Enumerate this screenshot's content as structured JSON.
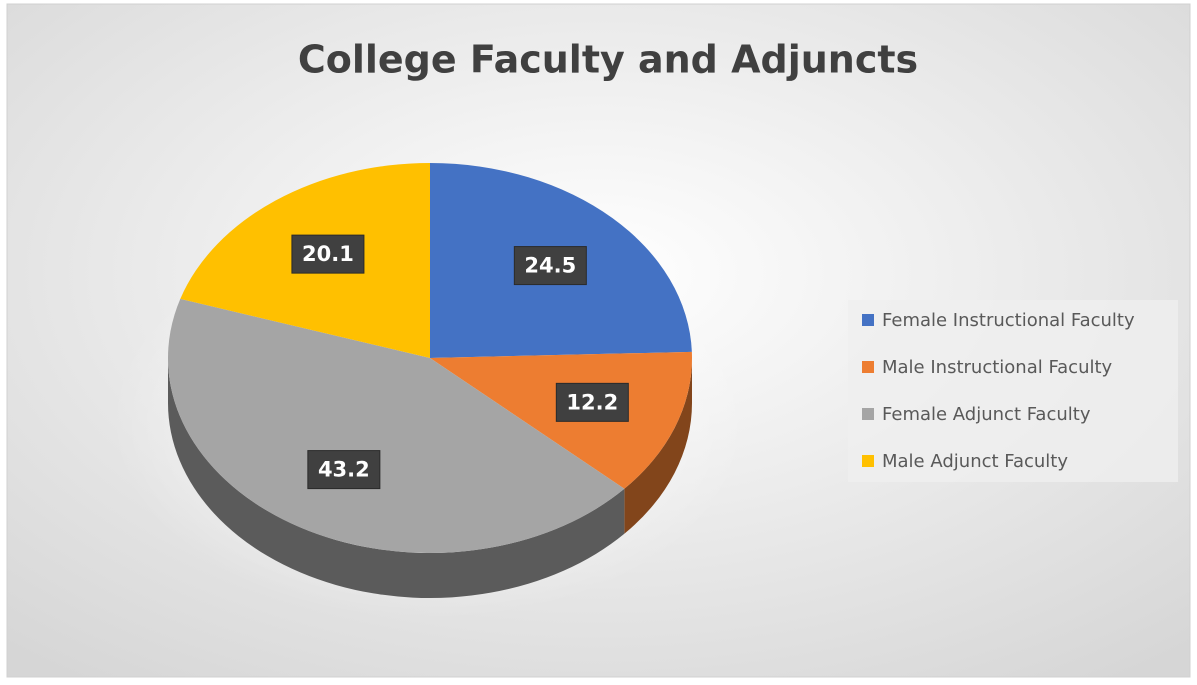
{
  "chart_data": {
    "type": "pie",
    "title": "College Faculty and Adjuncts",
    "categories": [
      "Female Instructional Faculty",
      "Male Instructional Faculty",
      "Female Adjunct Faculty",
      "Male Adjunct Faculty"
    ],
    "values": [
      24.5,
      12.2,
      43.2,
      20.1
    ],
    "colors": [
      "#4472c4",
      "#ed7d31",
      "#a5a5a5",
      "#ffc000"
    ],
    "legend": "right"
  }
}
